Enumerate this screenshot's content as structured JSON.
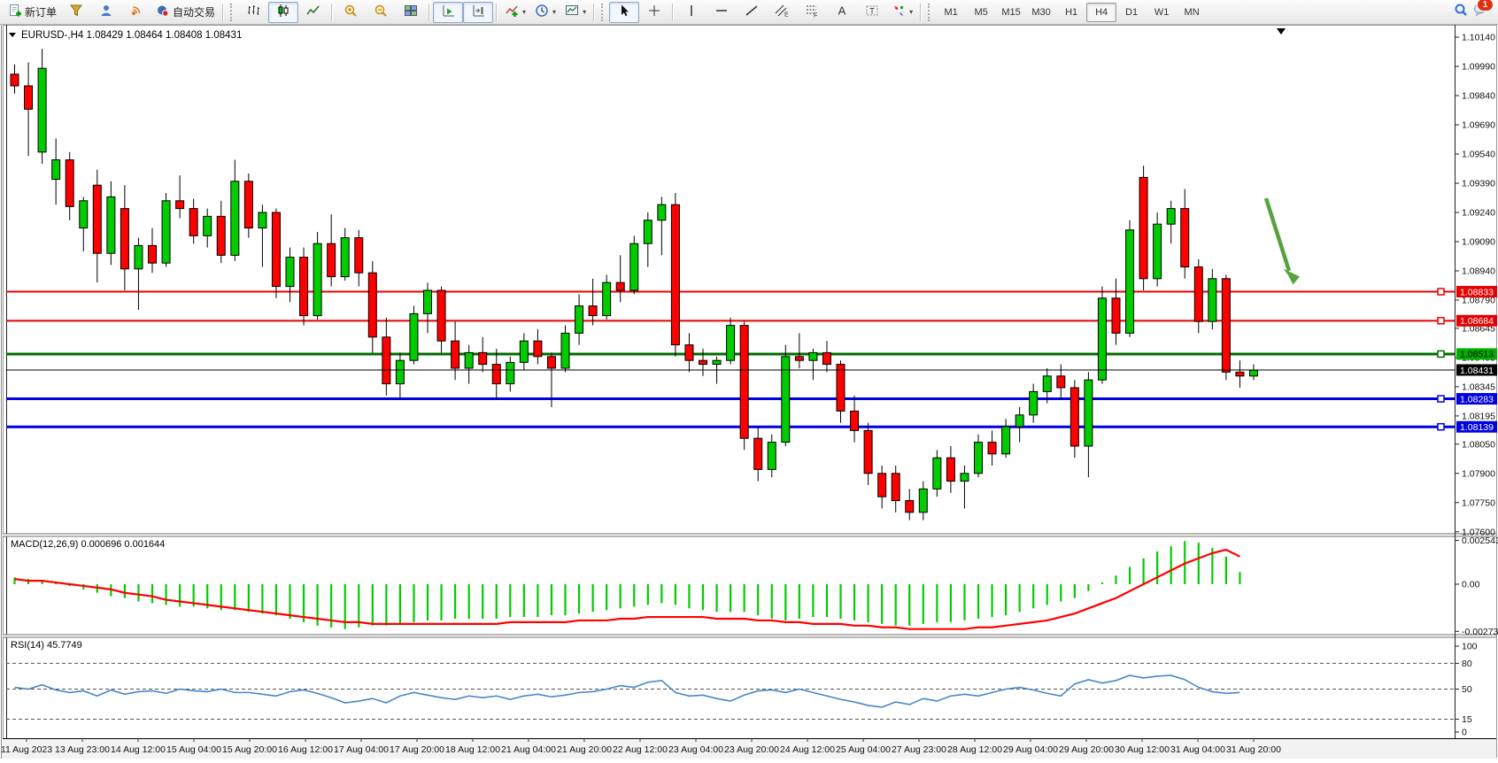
{
  "toolbar": {
    "new_order_label": "新订单",
    "auto_trading_label": "自动交易",
    "notification_count": "1",
    "groups": [
      {
        "items": [
          {
            "name": "new-order-button",
            "icon": "doc-plus",
            "label": "新订单"
          },
          {
            "name": "funnel-button",
            "icon": "funnel"
          },
          {
            "name": "user-chart-button",
            "icon": "user"
          },
          {
            "name": "broadcast-button",
            "icon": "signal"
          },
          {
            "name": "auto-trading-button",
            "icon": "ea",
            "label": "自动交易"
          }
        ]
      },
      {
        "grip": true,
        "items": [
          {
            "name": "bar-chart-button",
            "icon": "bars"
          },
          {
            "name": "candlestick-chart-button",
            "icon": "candles",
            "pressed": true
          },
          {
            "name": "line-chart-button",
            "icon": "linechart"
          }
        ]
      },
      {
        "items": [
          {
            "name": "zoom-in-button",
            "icon": "zoom-in"
          },
          {
            "name": "zoom-out-button",
            "icon": "zoom-out"
          },
          {
            "name": "tile-windows-button",
            "icon": "tiles"
          }
        ]
      },
      {
        "items": [
          {
            "name": "auto-scroll-button",
            "icon": "autoscroll",
            "pressed": true
          },
          {
            "name": "chart-shift-button",
            "icon": "shift",
            "pressed": true
          }
        ]
      },
      {
        "items": [
          {
            "name": "indicators-button",
            "icon": "indicator-add",
            "caret": true
          },
          {
            "name": "periods-button",
            "icon": "clock",
            "caret": true
          },
          {
            "name": "templates-button",
            "icon": "template",
            "caret": true
          }
        ]
      },
      {
        "grip": true,
        "items": [
          {
            "name": "cursor-button",
            "icon": "cursor",
            "pressed": true
          },
          {
            "name": "crosshair-button",
            "icon": "crosshair"
          }
        ]
      },
      {
        "items": [
          {
            "name": "vertical-line-button",
            "icon": "vline"
          },
          {
            "name": "horizontal-line-button",
            "icon": "hline"
          },
          {
            "name": "trendline-button",
            "icon": "tline"
          },
          {
            "name": "equidistant-channel-button",
            "icon": "channel"
          },
          {
            "name": "fibonacci-button",
            "icon": "fibo"
          },
          {
            "name": "text-button",
            "icon": "text-a"
          },
          {
            "name": "text-label-button",
            "icon": "label-t"
          },
          {
            "name": "arrows-button",
            "icon": "arrows",
            "caret": true
          }
        ]
      }
    ],
    "timeframes": [
      "M1",
      "M5",
      "M15",
      "M30",
      "H1",
      "H4",
      "D1",
      "W1",
      "MN"
    ],
    "active_timeframe": "H4"
  },
  "chart": {
    "symbol_period": "EURUSD-,H4",
    "ohlc_display": {
      "open": "1.08429",
      "high": "1.08464",
      "low": "1.08408",
      "close": "1.08431"
    },
    "price_axis_ticks": [
      "1.10140",
      "1.09990",
      "1.09840",
      "1.09690",
      "1.09540",
      "1.09390",
      "1.09240",
      "1.09090",
      "1.08940",
      "1.08790",
      "1.08645",
      "1.08495",
      "1.08345",
      "1.08195",
      "1.08050",
      "1.07900",
      "1.07750",
      "1.07600"
    ],
    "levels": [
      {
        "price": 1.08833,
        "label": "1.08833",
        "color": "#e80000",
        "text_color": "#ffffff",
        "line_width": 2
      },
      {
        "price": 1.08684,
        "label": "1.08684",
        "color": "#e80000",
        "text_color": "#ffffff",
        "line_width": 2
      },
      {
        "price": 1.08513,
        "label": "1.08513",
        "color": "#006b00",
        "label_bg": "#00b000",
        "text_color": "#000000",
        "line_width": 3
      },
      {
        "price": 1.08283,
        "label": "1.08283",
        "color": "#0000e0",
        "text_color": "#ffffff",
        "line_width": 3
      },
      {
        "price": 1.08139,
        "label": "1.08139",
        "color": "#0000e0",
        "text_color": "#ffffff",
        "line_width": 3
      }
    ],
    "current_price": {
      "value": 1.08431,
      "label": "1.08431",
      "label_bg": "#000000",
      "text_color": "#ffffff"
    },
    "time_axis_labels": [
      "11 Aug 2023",
      "13 Aug 23:00",
      "14 Aug 12:00",
      "15 Aug 04:00",
      "15 Aug 20:00",
      "16 Aug 12:00",
      "17 Aug 04:00",
      "17 Aug 20:00",
      "18 Aug 12:00",
      "21 Aug 04:00",
      "21 Aug 20:00",
      "22 Aug 12:00",
      "23 Aug 04:00",
      "23 Aug 20:00",
      "24 Aug 12:00",
      "25 Aug 04:00",
      "27 Aug 23:00",
      "28 Aug 12:00",
      "29 Aug 04:00",
      "29 Aug 20:00",
      "30 Aug 12:00",
      "31 Aug 04:00",
      "31 Aug 20:00"
    ],
    "annotation_arrow": {
      "color": "#56a33e",
      "direction": "down-right"
    },
    "colors": {
      "bull": "#00cc00",
      "bear": "#ff0000",
      "wick": "#000000",
      "background": "#ffffff",
      "foreground": "#000000"
    }
  },
  "macd_panel": {
    "label": "MACD(12,26,9)",
    "values_text": "0.000696 0.001644",
    "axis_ticks": [
      "0.002543",
      "0.00",
      "-0.002733"
    ],
    "histogram_color": "#00cc00",
    "signal_color": "#ff0000"
  },
  "rsi_panel": {
    "label": "RSI(14)",
    "value_text": "45.7749",
    "axis_ticks": [
      "100",
      "80",
      "50",
      "15",
      "0"
    ],
    "level_lines": [
      80,
      50,
      15
    ],
    "line_color": "#4a86c8"
  },
  "chart_data": {
    "type": "candlestick",
    "symbol": "EURUSD",
    "timeframe": "H4",
    "ylim": [
      1.0762,
      1.1016
    ],
    "candles_ohlc": [
      [
        1.0995,
        1.1,
        1.0985,
        1.0989
      ],
      [
        1.0989,
        1.1001,
        1.0953,
        1.0977
      ],
      [
        1.0955,
        1.1008,
        1.0949,
        1.0998
      ],
      [
        1.0941,
        1.0962,
        1.0928,
        1.0951
      ],
      [
        1.0951,
        1.0955,
        1.092,
        1.0927
      ],
      [
        1.0916,
        1.0932,
        1.0904,
        1.093
      ],
      [
        1.0938,
        1.0946,
        1.0888,
        1.0903
      ],
      [
        1.0903,
        1.094,
        1.0897,
        1.0932
      ],
      [
        1.0926,
        1.0938,
        1.0884,
        1.0895
      ],
      [
        1.0895,
        1.0911,
        1.0874,
        1.0907
      ],
      [
        1.0907,
        1.0916,
        1.0893,
        1.0898
      ],
      [
        1.0898,
        1.0934,
        1.0896,
        1.093
      ],
      [
        1.093,
        1.0943,
        1.0921,
        1.0926
      ],
      [
        1.0926,
        1.0931,
        1.0908,
        1.0912
      ],
      [
        1.0912,
        1.0926,
        1.0906,
        1.0922
      ],
      [
        1.0922,
        1.093,
        1.0898,
        1.0902
      ],
      [
        1.0902,
        1.0951,
        1.0899,
        1.094
      ],
      [
        1.094,
        1.0944,
        1.0911,
        1.0916
      ],
      [
        1.0916,
        1.0928,
        1.0896,
        1.0924
      ],
      [
        1.0924,
        1.0926,
        1.088,
        1.0886
      ],
      [
        1.0886,
        1.0906,
        1.0878,
        1.0901
      ],
      [
        1.0901,
        1.0906,
        1.0866,
        1.0871
      ],
      [
        1.0871,
        1.0914,
        1.0869,
        1.0908
      ],
      [
        1.0908,
        1.0923,
        1.0886,
        1.0891
      ],
      [
        1.0891,
        1.0916,
        1.0889,
        1.0911
      ],
      [
        1.0911,
        1.0915,
        1.0886,
        1.0893
      ],
      [
        1.0893,
        1.0899,
        1.0852,
        1.086
      ],
      [
        1.086,
        1.087,
        1.083,
        1.0836
      ],
      [
        1.0836,
        1.0852,
        1.0828,
        1.0848
      ],
      [
        1.0848,
        1.0876,
        1.0846,
        1.0872
      ],
      [
        1.0872,
        1.0888,
        1.0862,
        1.0884
      ],
      [
        1.0884,
        1.0886,
        1.0852,
        1.0858
      ],
      [
        1.0858,
        1.0868,
        1.0838,
        1.0844
      ],
      [
        1.0844,
        1.0856,
        1.0836,
        1.0852
      ],
      [
        1.0852,
        1.086,
        1.0842,
        1.0846
      ],
      [
        1.0846,
        1.0854,
        1.0828,
        1.0836
      ],
      [
        1.0836,
        1.085,
        1.0832,
        1.0847
      ],
      [
        1.0847,
        1.0862,
        1.0843,
        1.0858
      ],
      [
        1.0858,
        1.0864,
        1.0846,
        1.085
      ],
      [
        1.085,
        1.0852,
        1.0824,
        1.0844
      ],
      [
        1.0844,
        1.0866,
        1.0842,
        1.0862
      ],
      [
        1.0862,
        1.0882,
        1.0856,
        1.0876
      ],
      [
        1.0876,
        1.089,
        1.0866,
        1.0871
      ],
      [
        1.0871,
        1.0892,
        1.0869,
        1.0888
      ],
      [
        1.0888,
        1.0902,
        1.0878,
        1.0884
      ],
      [
        1.0884,
        1.0912,
        1.0882,
        1.0908
      ],
      [
        1.0908,
        1.0924,
        1.0896,
        1.092
      ],
      [
        1.092,
        1.0932,
        1.0902,
        1.0928
      ],
      [
        1.0928,
        1.0934,
        1.085,
        1.0856
      ],
      [
        1.0856,
        1.0862,
        1.0842,
        1.0848
      ],
      [
        1.0848,
        1.0854,
        1.084,
        1.0846
      ],
      [
        1.0846,
        1.085,
        1.0836,
        1.0848
      ],
      [
        1.0848,
        1.087,
        1.0846,
        1.0866
      ],
      [
        1.0866,
        1.0868,
        1.0802,
        1.0808
      ],
      [
        1.0808,
        1.0814,
        1.0786,
        1.0792
      ],
      [
        1.0792,
        1.081,
        1.0788,
        1.0806
      ],
      [
        1.0806,
        1.0856,
        1.0804,
        1.085
      ],
      [
        1.085,
        1.0862,
        1.0844,
        1.0848
      ],
      [
        1.0848,
        1.0854,
        1.0838,
        1.0852
      ],
      [
        1.0852,
        1.0858,
        1.0842,
        1.0846
      ],
      [
        1.0846,
        1.0848,
        1.0816,
        1.0822
      ],
      [
        1.0822,
        1.083,
        1.0806,
        1.0812
      ],
      [
        1.0812,
        1.0816,
        1.0784,
        1.079
      ],
      [
        1.079,
        1.0794,
        1.0772,
        1.0778
      ],
      [
        1.079,
        1.0794,
        1.077,
        1.0776
      ],
      [
        1.0776,
        1.0782,
        1.0766,
        1.077
      ],
      [
        1.077,
        1.0786,
        1.0766,
        1.0782
      ],
      [
        1.0782,
        1.0802,
        1.0778,
        1.0798
      ],
      [
        1.0798,
        1.0804,
        1.078,
        1.0786
      ],
      [
        1.0786,
        1.0794,
        1.0772,
        1.079
      ],
      [
        1.079,
        1.081,
        1.0788,
        1.0806
      ],
      [
        1.0806,
        1.0812,
        1.0794,
        1.08
      ],
      [
        1.08,
        1.0818,
        1.0798,
        1.0814
      ],
      [
        1.0814,
        1.0824,
        1.0806,
        1.082
      ],
      [
        1.082,
        1.0836,
        1.0816,
        1.0832
      ],
      [
        1.0832,
        1.0844,
        1.0826,
        1.084
      ],
      [
        1.084,
        1.0846,
        1.0828,
        1.0834
      ],
      [
        1.0834,
        1.0838,
        1.0798,
        1.0804
      ],
      [
        1.0804,
        1.0842,
        1.0788,
        1.0838
      ],
      [
        1.0838,
        1.0886,
        1.0836,
        1.088
      ],
      [
        1.088,
        1.089,
        1.0856,
        1.0862
      ],
      [
        1.0862,
        1.092,
        1.086,
        1.0915
      ],
      [
        1.0942,
        1.0948,
        1.0884,
        1.089
      ],
      [
        1.089,
        1.0924,
        1.0886,
        1.0918
      ],
      [
        1.0918,
        1.093,
        1.0908,
        1.0926
      ],
      [
        1.0926,
        1.0936,
        1.089,
        1.0896
      ],
      [
        1.0896,
        1.09,
        1.0862,
        1.0868
      ],
      [
        1.0868,
        1.0895,
        1.0864,
        1.089
      ],
      [
        1.089,
        1.0892,
        1.0838,
        1.0842
      ],
      [
        1.0842,
        1.0848,
        1.0834,
        1.084
      ],
      [
        1.084,
        1.0846,
        1.0838,
        1.0843
      ]
    ],
    "macd_histogram": [
      0.0004,
      0.0003,
      0.0002,
      0.0001,
      -0.0001,
      -0.0003,
      -0.0005,
      -0.0007,
      -0.0008,
      -0.001,
      -0.0011,
      -0.0012,
      -0.0013,
      -0.0013,
      -0.0014,
      -0.0015,
      -0.0015,
      -0.0016,
      -0.0017,
      -0.0018,
      -0.002,
      -0.0022,
      -0.0024,
      -0.0025,
      -0.0026,
      -0.0025,
      -0.0024,
      -0.0024,
      -0.0023,
      -0.0022,
      -0.0021,
      -0.0021,
      -0.002,
      -0.002,
      -0.002,
      -0.002,
      -0.0019,
      -0.0019,
      -0.0019,
      -0.0018,
      -0.0018,
      -0.0017,
      -0.0016,
      -0.0015,
      -0.0014,
      -0.0013,
      -0.0012,
      -0.0011,
      -0.0012,
      -0.0014,
      -0.0015,
      -0.0016,
      -0.0016,
      -0.0016,
      -0.0018,
      -0.002,
      -0.0021,
      -0.002,
      -0.0019,
      -0.0019,
      -0.002,
      -0.0021,
      -0.0022,
      -0.0023,
      -0.0024,
      -0.0024,
      -0.0023,
      -0.0022,
      -0.0022,
      -0.0021,
      -0.002,
      -0.0019,
      -0.0018,
      -0.0016,
      -0.0014,
      -0.0012,
      -0.001,
      -0.0008,
      -0.0004,
      0.0001,
      0.0005,
      0.001,
      0.0015,
      0.0019,
      0.0022,
      0.0025,
      0.0024,
      0.0021,
      0.0016,
      0.0007
    ],
    "macd_signal": [
      0.0003,
      0.0002,
      0.0002,
      0.0001,
      0.0,
      -0.0001,
      -0.0002,
      -0.0003,
      -0.0005,
      -0.0006,
      -0.0007,
      -0.0009,
      -0.001,
      -0.0011,
      -0.0012,
      -0.0013,
      -0.0014,
      -0.0015,
      -0.0016,
      -0.0017,
      -0.0018,
      -0.0019,
      -0.002,
      -0.0021,
      -0.0022,
      -0.0022,
      -0.0023,
      -0.0023,
      -0.0023,
      -0.0023,
      -0.0023,
      -0.0023,
      -0.0023,
      -0.0023,
      -0.0023,
      -0.0023,
      -0.0022,
      -0.0022,
      -0.0022,
      -0.0022,
      -0.0022,
      -0.0021,
      -0.0021,
      -0.0021,
      -0.002,
      -0.002,
      -0.0019,
      -0.0019,
      -0.0019,
      -0.0019,
      -0.0019,
      -0.002,
      -0.002,
      -0.002,
      -0.0021,
      -0.0021,
      -0.0022,
      -0.0022,
      -0.0023,
      -0.0023,
      -0.0023,
      -0.0024,
      -0.0024,
      -0.0025,
      -0.0025,
      -0.0026,
      -0.0026,
      -0.0026,
      -0.0026,
      -0.0026,
      -0.0025,
      -0.0025,
      -0.0024,
      -0.0023,
      -0.0022,
      -0.0021,
      -0.0019,
      -0.0017,
      -0.0014,
      -0.0011,
      -0.0008,
      -0.0004,
      0.0,
      0.0004,
      0.0008,
      0.0012,
      0.0015,
      0.0018,
      0.002,
      0.0016
    ],
    "rsi_values": [
      52,
      50,
      55,
      49,
      46,
      48,
      42,
      49,
      44,
      47,
      48,
      45,
      50,
      48,
      47,
      50,
      46,
      46,
      44,
      42,
      47,
      49,
      45,
      40,
      34,
      36,
      39,
      34,
      42,
      46,
      43,
      40,
      38,
      42,
      40,
      42,
      38,
      42,
      44,
      41,
      43,
      46,
      47,
      50,
      54,
      52,
      58,
      60,
      46,
      42,
      43,
      39,
      36,
      43,
      48,
      49,
      46,
      50,
      46,
      42,
      38,
      35,
      31,
      29,
      35,
      32,
      39,
      36,
      42,
      44,
      42,
      46,
      50,
      52,
      49,
      45,
      42,
      56,
      61,
      57,
      60,
      66,
      63,
      65,
      66,
      61,
      52,
      47,
      45,
      46
    ],
    "macd_ylim": [
      -0.002733,
      0.002543
    ],
    "rsi_ylim": [
      0,
      100
    ]
  }
}
